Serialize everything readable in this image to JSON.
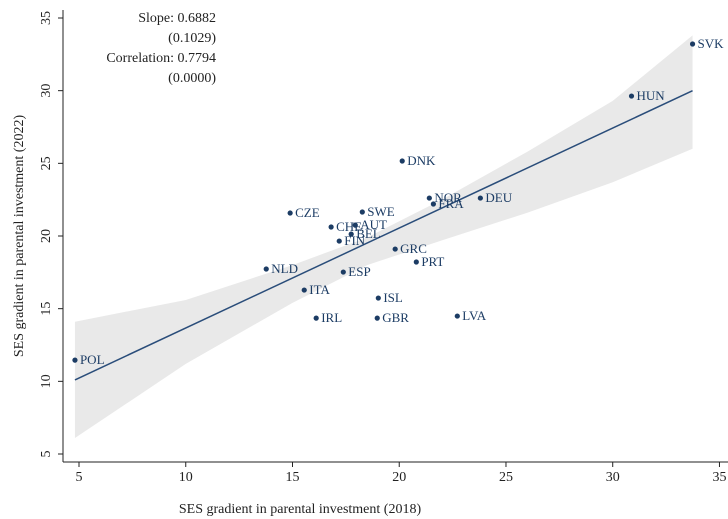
{
  "chart_data": {
    "type": "scatter",
    "xlabel": "SES gradient in parental investment (2018)",
    "ylabel": "SES gradient in parental investment (2022)",
    "annotations": [
      "Slope: 0.6882",
      "(0.1029)",
      "Correlation: 0.7794",
      "(0.0000)"
    ],
    "xlim": [
      4.25,
      35.4
    ],
    "ylim": [
      4.45,
      35.55
    ],
    "xticks": [
      5,
      10,
      15,
      20,
      25,
      30,
      35
    ],
    "yticks": [
      5,
      10,
      15,
      20,
      25,
      30,
      35
    ],
    "series": [
      {
        "color": "#1c3c64",
        "labels": [
          "POL",
          "SVK",
          "HUN",
          "DNK",
          "NOR",
          "FRA",
          "DEU",
          "CZE",
          "SWE",
          "CHE",
          "AUT",
          "BEL",
          "FIN",
          "GRC",
          "NLD",
          "ESP",
          "PRT",
          "ITA",
          "ISL",
          "IRL",
          "GBR",
          "LVA"
        ],
        "x": [
          4.81,
          33.74,
          30.88,
          20.14,
          21.41,
          21.6,
          23.8,
          14.89,
          18.27,
          16.81,
          17.94,
          17.75,
          17.19,
          19.81,
          13.77,
          17.38,
          20.8,
          15.55,
          19.02,
          16.11,
          18.97,
          22.72
        ],
        "values": [
          11.46,
          33.21,
          29.63,
          25.16,
          22.61,
          22.2,
          22.61,
          21.58,
          21.65,
          20.62,
          20.75,
          20.13,
          19.65,
          19.1,
          17.73,
          17.52,
          18.21,
          16.28,
          15.73,
          14.35,
          14.35,
          14.49
        ]
      }
    ],
    "fit": {
      "color": "#2a4d7a",
      "x": [
        4.81,
        33.74
      ],
      "values": [
        10.1,
        30.0
      ]
    },
    "band": {
      "color": "#e9e9e9",
      "x": [
        4.81,
        10,
        15,
        18.5,
        22,
        26,
        30,
        33.74
      ],
      "lower": [
        6.1,
        11.2,
        15.4,
        18.0,
        19.7,
        21.6,
        23.7,
        26.0
      ],
      "upper": [
        14.1,
        15.6,
        18.0,
        19.9,
        22.5,
        25.8,
        29.3,
        33.8
      ]
    }
  }
}
